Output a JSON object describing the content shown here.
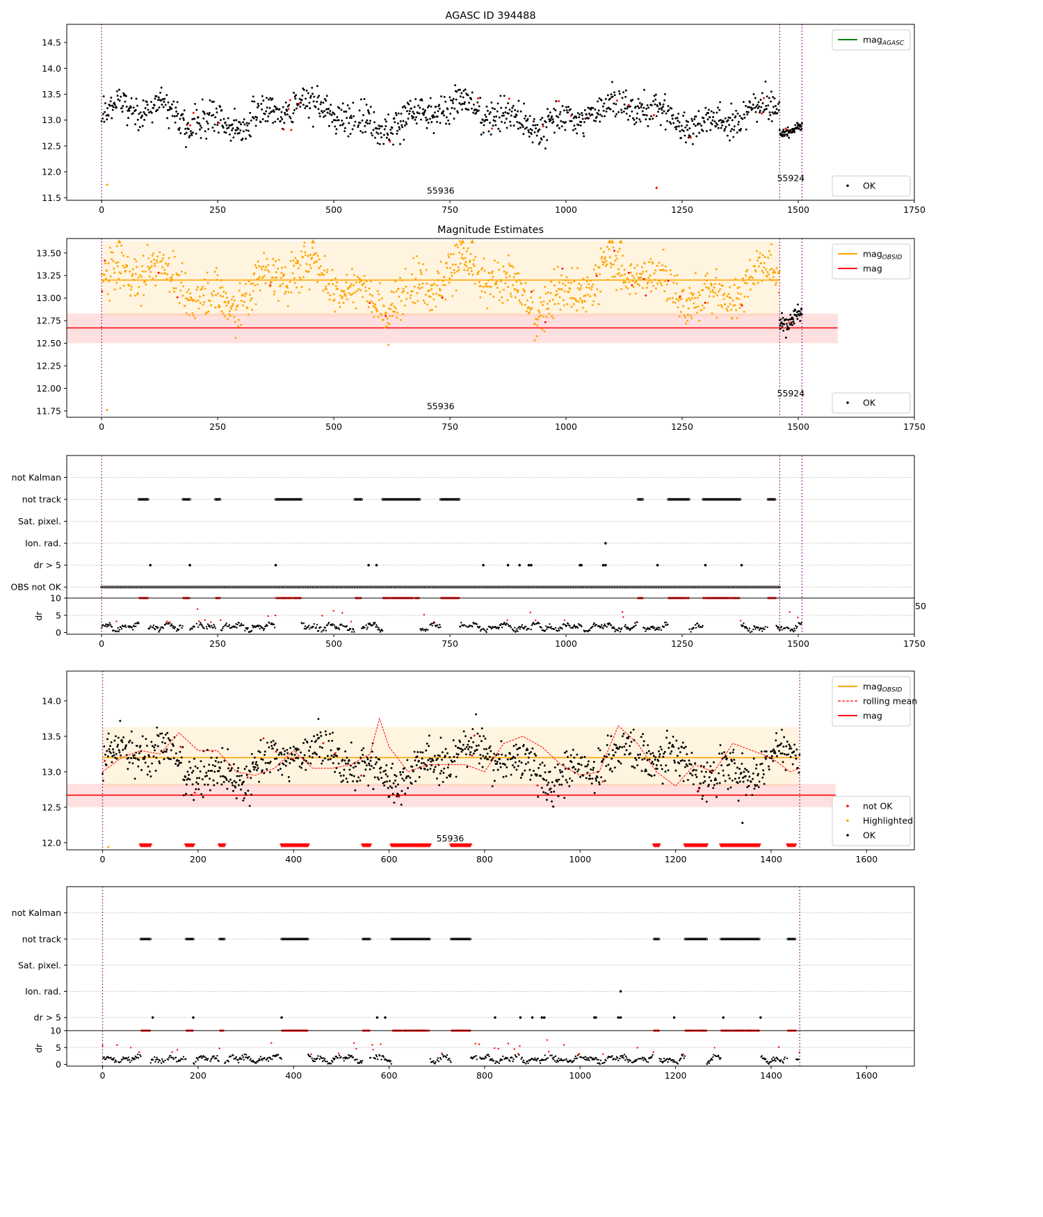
{
  "figure": {
    "title": "AGASC ID 394488"
  },
  "colors": {
    "ok": "#000000",
    "highlighted": "#ffa500",
    "not_ok": "#ff0000",
    "agasc": "#008000",
    "obsid": "#ffa500",
    "mag": "#ff0000",
    "obsid_line": "#800080",
    "band_obsid": "#ffa500",
    "band_mag": "#ff0000"
  },
  "chart_data": [
    {
      "type": "scatter",
      "title": "AGASC ID 394488",
      "xlim": [
        -75,
        1750
      ],
      "ylim": [
        11.45,
        14.85
      ],
      "xticks": [
        0,
        250,
        500,
        750,
        1000,
        1250,
        1500,
        1750
      ],
      "yticks": [
        11.5,
        12.0,
        12.5,
        13.0,
        13.5,
        14.0,
        14.5
      ],
      "ytick_labels": [
        "11.5",
        "12.0",
        "12.5",
        "13.0",
        "13.5",
        "14.0",
        "14.5"
      ],
      "legend": [
        {
          "label": "mag",
          "sub": "AGASC",
          "style": "line",
          "color": "#008000"
        }
      ],
      "legend_position": "upper right",
      "legend2": [
        {
          "label": "OK",
          "style": "dot",
          "color": "#000000"
        }
      ],
      "legend2_position": "lower right",
      "obsid_boundaries": [
        0,
        1460,
        1508
      ],
      "obsid_labels": [
        {
          "text": "55936",
          "x": 730,
          "y": 11.58
        },
        {
          "text": "55924",
          "x": 1484,
          "y": 11.82
        }
      ],
      "segments": [
        {
          "x0": 0,
          "x1": 1460,
          "mean": 13.1,
          "sd": 0.38,
          "color": "#000000"
        },
        {
          "x0": 1460,
          "x1": 1508,
          "mean": 12.68,
          "sd": 0.1,
          "color": "#000000"
        }
      ],
      "capped_at": 14.6,
      "extra_points": [
        {
          "x": 12,
          "y": 11.75,
          "color": "#ffa500"
        },
        {
          "x": 1195,
          "y": 11.69,
          "color": "#ff0000"
        }
      ]
    },
    {
      "type": "scatter",
      "title": "Magnitude Estimates",
      "xlim": [
        -75,
        1750
      ],
      "ylim": [
        11.68,
        13.66
      ],
      "xticks": [
        0,
        250,
        500,
        750,
        1000,
        1250,
        1500,
        1750
      ],
      "yticks": [
        11.75,
        12.0,
        12.25,
        12.5,
        12.75,
        13.0,
        13.25,
        13.5
      ],
      "ytick_labels": [
        "11.75",
        "12.00",
        "12.25",
        "12.50",
        "12.75",
        "13.00",
        "13.25",
        "13.50"
      ],
      "legend": [
        {
          "label": "mag",
          "sub": "OBSID",
          "style": "line",
          "color": "#ffa500"
        },
        {
          "label": "mag",
          "sub": "",
          "style": "line",
          "color": "#ff0000"
        }
      ],
      "legend_position": "upper right",
      "legend2": [
        {
          "label": "OK",
          "style": "dot",
          "color": "#000000"
        }
      ],
      "legend2_position": "lower right",
      "obsid_boundaries": [
        0,
        1460,
        1508
      ],
      "obsid_labels": [
        {
          "text": "55936",
          "x": 730,
          "y": 11.77
        },
        {
          "text": "55924",
          "x": 1484,
          "y": 11.91
        }
      ],
      "bands": [
        {
          "x0": 0,
          "x1": 1460,
          "y0": 12.8,
          "y1": 13.63,
          "center": 13.2,
          "color": "#ffa500"
        },
        {
          "x0": -75,
          "x1": 1585,
          "y0": 12.5,
          "y1": 12.83,
          "center": 12.67,
          "color": "#ff0000"
        }
      ],
      "segments": [
        {
          "x0": 0,
          "x1": 1460,
          "mean": 13.15,
          "sd": 0.3,
          "color": "#ffa500"
        },
        {
          "x0": 1460,
          "x1": 1508,
          "mean": 12.65,
          "sd": 0.12,
          "color": "#000000"
        }
      ],
      "capped_at": 13.63,
      "extra_points": [
        {
          "x": 12,
          "y": 11.76,
          "color": "#ffa500"
        }
      ]
    },
    {
      "type": "scatter",
      "title": "",
      "xlim": [
        -75,
        1750
      ],
      "categories": [
        "not Kalman",
        "not track",
        "Sat. pixel.",
        "Ion. rad.",
        "dr > 5",
        "OBS not OK"
      ],
      "obsid_boundaries": [
        0,
        1460,
        1508
      ],
      "ranges": {
        "not track": [
          [
            80,
            100
          ],
          [
            175,
            190
          ],
          [
            245,
            255
          ],
          [
            375,
            430
          ],
          [
            545,
            560
          ],
          [
            605,
            685
          ],
          [
            730,
            770
          ],
          [
            1155,
            1165
          ],
          [
            1220,
            1265
          ],
          [
            1295,
            1375
          ],
          [
            1435,
            1452
          ]
        ],
        "Ion. rad.": [
          [
            1085,
            1085
          ]
        ],
        "dr > 5": [
          [
            105,
            105
          ],
          [
            190,
            190
          ],
          [
            375,
            375
          ],
          [
            575,
            575
          ],
          [
            592,
            592
          ],
          [
            822,
            822
          ],
          [
            875,
            875
          ],
          [
            900,
            900
          ],
          [
            920,
            920
          ],
          [
            925,
            925
          ],
          [
            1030,
            1030
          ],
          [
            1033,
            1033
          ],
          [
            1080,
            1080
          ],
          [
            1085,
            1085
          ],
          [
            1197,
            1197
          ],
          [
            1300,
            1300
          ],
          [
            1378,
            1378
          ]
        ],
        "OBS not OK": [
          [
            0,
            1460
          ]
        ]
      },
      "dr_subplot": {
        "ylabel": "dr",
        "ylim": [
          -0.5,
          10
        ],
        "yticks": [
          0,
          5,
          10
        ],
        "xticks": [
          0,
          250,
          500,
          750,
          1000,
          1250,
          1500,
          1750
        ],
        "edge_text": "50"
      }
    },
    {
      "type": "scatter",
      "title": "",
      "xlim": [
        -75,
        1700
      ],
      "ylim": [
        11.9,
        14.42
      ],
      "xticks": [
        0,
        200,
        400,
        600,
        800,
        1000,
        1200,
        1400,
        1600
      ],
      "yticks": [
        12.0,
        12.5,
        13.0,
        13.5,
        14.0
      ],
      "ytick_labels": [
        "12.0",
        "12.5",
        "13.0",
        "13.5",
        "14.0"
      ],
      "legend": [
        {
          "label": "mag",
          "sub": "OBSID",
          "style": "line",
          "color": "#ffa500"
        },
        {
          "label": "rolling mean",
          "sub": "",
          "style": "dashed",
          "color": "#ff0000"
        },
        {
          "label": "mag",
          "sub": "",
          "style": "line",
          "color": "#ff0000"
        }
      ],
      "legend_position": "upper right",
      "legend2": [
        {
          "label": "not OK",
          "style": "dot",
          "color": "#ff0000"
        },
        {
          "label": "Highlighted",
          "style": "dot",
          "color": "#ffa500"
        },
        {
          "label": "OK",
          "style": "dot",
          "color": "#000000"
        }
      ],
      "legend2_position": "lower right",
      "obsid_boundaries": [
        0,
        1460
      ],
      "obsid_labels": [
        {
          "text": "55936",
          "x": 728,
          "y": 12.02
        }
      ],
      "bands": [
        {
          "x0": 0,
          "x1": 1460,
          "y0": 12.8,
          "y1": 13.63,
          "center": 13.2,
          "color": "#ffa500"
        },
        {
          "x0": -75,
          "x1": 1535,
          "y0": 12.5,
          "y1": 12.83,
          "center": 12.67,
          "color": "#ff0000"
        }
      ],
      "segments": [
        {
          "x0": 0,
          "x1": 1460,
          "mean": 13.12,
          "sd": 0.36,
          "color": "#000000"
        }
      ],
      "capped_at": 14.4,
      "bottom_markers_at": 11.96,
      "rolling_mean": {
        "x": [
          0,
          40,
          80,
          120,
          160,
          200,
          240,
          280,
          320,
          360,
          400,
          440,
          480,
          520,
          560,
          580,
          600,
          640,
          680,
          720,
          760,
          800,
          840,
          880,
          920,
          960,
          1000,
          1040,
          1080,
          1120,
          1160,
          1200,
          1240,
          1280,
          1320,
          1360,
          1400,
          1440,
          1460
        ],
        "y": [
          13.0,
          13.2,
          13.3,
          13.25,
          13.55,
          13.3,
          13.3,
          13.0,
          12.95,
          13.05,
          13.3,
          13.05,
          13.05,
          13.1,
          13.25,
          13.75,
          13.35,
          13.0,
          13.1,
          13.1,
          13.1,
          13.0,
          13.4,
          13.5,
          13.35,
          13.1,
          12.95,
          13.0,
          13.65,
          13.4,
          13.0,
          12.8,
          13.1,
          13.0,
          13.4,
          13.3,
          13.2,
          13.0,
          13.05
        ]
      },
      "extra_points": [
        {
          "x": 12,
          "y": 11.94,
          "color": "#ffa500"
        },
        {
          "x": 1340,
          "y": 12.28,
          "color": "#000000"
        }
      ]
    },
    {
      "type": "scatter",
      "title": "",
      "xlim": [
        -75,
        1700
      ],
      "categories": [
        "not Kalman",
        "not track",
        "Sat. pixel.",
        "Ion. rad.",
        "dr > 5"
      ],
      "obsid_boundaries": [
        0,
        1460
      ],
      "ranges": {
        "not track": [
          [
            80,
            100
          ],
          [
            175,
            190
          ],
          [
            245,
            255
          ],
          [
            375,
            430
          ],
          [
            545,
            560
          ],
          [
            605,
            685
          ],
          [
            730,
            770
          ],
          [
            1155,
            1165
          ],
          [
            1220,
            1265
          ],
          [
            1295,
            1375
          ],
          [
            1435,
            1452
          ]
        ],
        "Ion. rad.": [
          [
            1085,
            1085
          ]
        ],
        "dr > 5": [
          [
            105,
            105
          ],
          [
            190,
            190
          ],
          [
            375,
            375
          ],
          [
            575,
            575
          ],
          [
            592,
            592
          ],
          [
            822,
            822
          ],
          [
            875,
            875
          ],
          [
            900,
            900
          ],
          [
            920,
            920
          ],
          [
            925,
            925
          ],
          [
            1030,
            1030
          ],
          [
            1033,
            1033
          ],
          [
            1080,
            1080
          ],
          [
            1085,
            1085
          ],
          [
            1197,
            1197
          ],
          [
            1300,
            1300
          ],
          [
            1378,
            1378
          ]
        ]
      },
      "dr_subplot": {
        "ylabel": "dr",
        "ylim": [
          -0.5,
          10
        ],
        "yticks": [
          0,
          5,
          10
        ],
        "xticks": [
          0,
          200,
          400,
          600,
          800,
          1000,
          1200,
          1400,
          1600
        ]
      }
    }
  ]
}
